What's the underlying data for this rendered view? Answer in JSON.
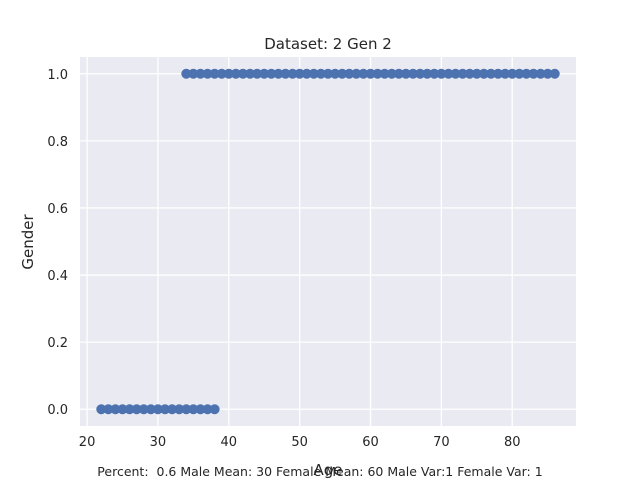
{
  "chart_data": {
    "type": "scatter",
    "title": "Dataset: 2 Gen 2",
    "xlabel": "Age",
    "ylabel": "Gender",
    "xlim": [
      19,
      89
    ],
    "ylim": [
      -0.05,
      1.05
    ],
    "xticks": [
      20,
      30,
      40,
      50,
      60,
      70,
      80
    ],
    "yticks": [
      0.0,
      0.2,
      0.4,
      0.6,
      0.8,
      1.0
    ],
    "grid": true,
    "background": "#eaeaf2",
    "marker_color": "#4c72b0",
    "series": [
      {
        "values_x": [
          22,
          23,
          24,
          25,
          26,
          27,
          28,
          29,
          30,
          31,
          32,
          33,
          34,
          35,
          36,
          37,
          38
        ],
        "values_y": [
          0,
          0,
          0,
          0,
          0,
          0,
          0,
          0,
          0,
          0,
          0,
          0,
          0,
          0,
          0,
          0,
          0
        ]
      },
      {
        "values_x": [
          34,
          35,
          36,
          37,
          38,
          39,
          40,
          41,
          42,
          43,
          44,
          45,
          46,
          47,
          48,
          49,
          50,
          51,
          52,
          53,
          54,
          55,
          56,
          57,
          58,
          59,
          60,
          61,
          62,
          63,
          64,
          65,
          66,
          67,
          68,
          69,
          70,
          71,
          72,
          73,
          74,
          75,
          76,
          77,
          78,
          79,
          80,
          81,
          82,
          83,
          84,
          85,
          86
        ],
        "values_y": [
          1,
          1,
          1,
          1,
          1,
          1,
          1,
          1,
          1,
          1,
          1,
          1,
          1,
          1,
          1,
          1,
          1,
          1,
          1,
          1,
          1,
          1,
          1,
          1,
          1,
          1,
          1,
          1,
          1,
          1,
          1,
          1,
          1,
          1,
          1,
          1,
          1,
          1,
          1,
          1,
          1,
          1,
          1,
          1,
          1,
          1,
          1,
          1,
          1,
          1,
          1,
          1,
          1
        ]
      }
    ],
    "footnote": "Percent:  0.6 Male Mean: 30 Female Mean: 60 Male Var:1 Female Var: 1"
  }
}
